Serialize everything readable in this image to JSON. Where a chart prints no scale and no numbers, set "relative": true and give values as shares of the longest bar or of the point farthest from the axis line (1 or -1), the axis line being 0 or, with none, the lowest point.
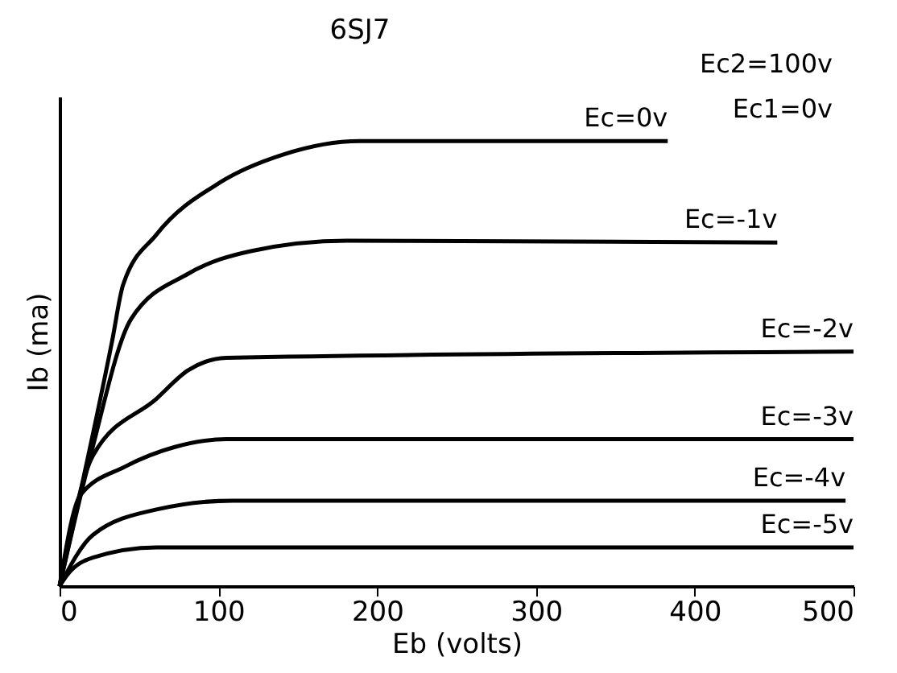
{
  "chart_data": {
    "type": "line",
    "title": "6SJ7",
    "xlabel": "Eb (volts)",
    "ylabel": "Ib (ma)",
    "relative": true,
    "annotations": [
      "Ec2=100v",
      "Ec1=0v"
    ],
    "xlim": [
      0,
      500
    ],
    "xticks": [
      0,
      100,
      200,
      300,
      400,
      500
    ],
    "grid": false,
    "marker": "none",
    "line_style": "solid",
    "series": [
      {
        "name": "Ec=0v",
        "color": "#000000",
        "x": [
          0,
          33,
          40,
          61,
          101,
          141,
          189,
          383
        ],
        "values": [
          0,
          0.549,
          0.677,
          0.79,
          0.907,
          0.97,
          1.0,
          1.0
        ]
      },
      {
        "name": "Ec=-1v",
        "color": "#000000",
        "x": [
          0,
          20,
          45,
          81,
          121,
          181,
          452
        ],
        "values": [
          0,
          0.3,
          0.6,
          0.702,
          0.753,
          0.776,
          0.772
        ]
      },
      {
        "name": "Ec=-2v",
        "color": "#000000",
        "x": [
          0,
          21,
          61,
          81,
          105,
          500
        ],
        "values": [
          0,
          0.293,
          0.421,
          0.485,
          0.513,
          0.527
        ]
      },
      {
        "name": "Ec=-3v",
        "color": "#000000",
        "x": [
          0,
          13,
          41,
          73,
          105,
          500
        ],
        "values": [
          0,
          0.204,
          0.268,
          0.313,
          0.33,
          0.33
        ]
      },
      {
        "name": "Ec=-4v",
        "color": "#000000",
        "x": [
          0,
          21,
          61,
          109,
          495
        ],
        "values": [
          0,
          0.115,
          0.172,
          0.192,
          0.192
        ]
      },
      {
        "name": "Ec=-5v",
        "color": "#000000",
        "x": [
          0,
          5,
          21,
          61,
          500
        ],
        "values": [
          0,
          0.026,
          0.064,
          0.087,
          0.087
        ]
      }
    ]
  }
}
